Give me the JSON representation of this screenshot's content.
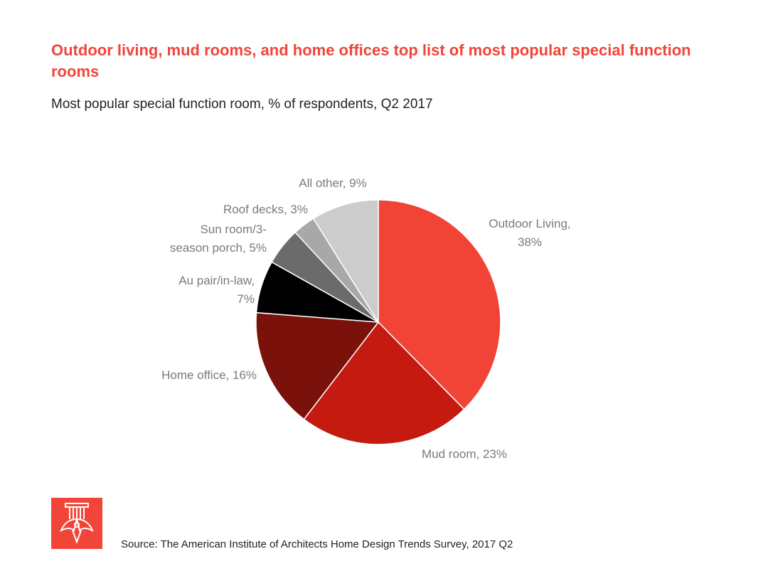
{
  "header": {
    "title": "Outdoor living, mud rooms, and home offices top list of most popular special function rooms",
    "subtitle": "Most popular special function room, % of respondents, Q2 2017"
  },
  "footer": {
    "source": "Source: The American Institute of Architects Home Design Trends Survey, 2017 Q2",
    "logo_icon": "aia-eagle-logo-icon",
    "logo_color": "#f1453a"
  },
  "chart_data": {
    "type": "pie",
    "start": "12 o'clock",
    "direction": "clockwise",
    "categories": [
      "Outdoor Living",
      "Mud room",
      "Home office",
      "Au pair/in-law",
      "Sun room/3-season porch",
      "Roof decks",
      "All other"
    ],
    "values": [
      38,
      23,
      16,
      7,
      5,
      3,
      9
    ],
    "colors": [
      "#f14336",
      "#c41a10",
      "#7a110b",
      "#000000",
      "#6b6b6b",
      "#a8a8a8",
      "#cccccc"
    ],
    "labels": [
      [
        "Outdoor Living,",
        "38%"
      ],
      [
        "Mud room, 23%"
      ],
      [
        "Home office, 16%"
      ],
      [
        "Au pair/in-law,",
        "7%"
      ],
      [
        "Sun room/3-",
        "season porch, 5%"
      ],
      [
        "Roof decks, 3%"
      ],
      [
        "All other, 9%"
      ]
    ],
    "unit": "%"
  }
}
